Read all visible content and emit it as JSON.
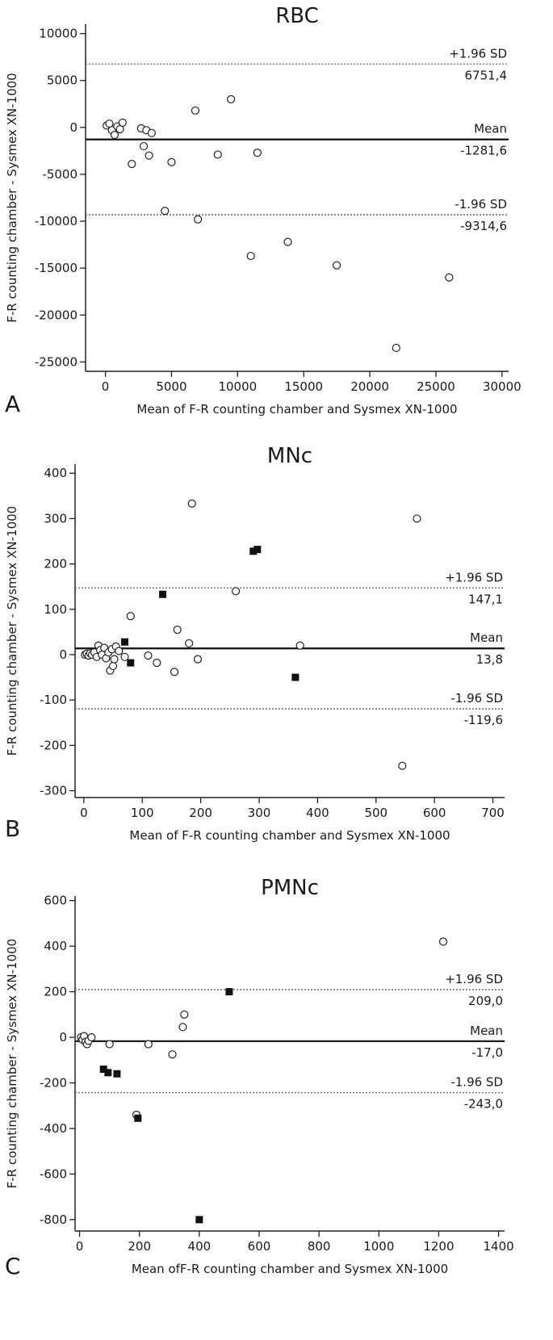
{
  "chart_data": [
    {
      "type": "scatter",
      "panel_letter": "A",
      "title": "RBC",
      "xlabel": "Mean of F-R counting chamber and Sysmex XN-1000",
      "ylabel": "F-R counting chamber - Sysmex XN-1000",
      "xlim": [
        -1500,
        30500
      ],
      "ylim": [
        -26000,
        11000
      ],
      "xticks": [
        0,
        5000,
        10000,
        15000,
        20000,
        25000,
        30000
      ],
      "xtick_labels": [
        "0",
        "5000",
        "10000",
        "15000",
        "20000",
        "25000",
        "30000"
      ],
      "yticks": [
        10000,
        5000,
        0,
        -5000,
        -10000,
        -15000,
        -20000,
        -25000
      ],
      "ytick_labels": [
        "10000",
        "5000",
        "0",
        "-5000",
        "-10000",
        "-15000",
        "-20000",
        "-25000"
      ],
      "grid": false,
      "reference_lines": [
        {
          "name": "+1.96 SD",
          "value": 6751.4,
          "value_label": "6751,4",
          "style": "dotted"
        },
        {
          "name": "Mean",
          "value": -1281.6,
          "value_label": "-1281,6",
          "style": "solid"
        },
        {
          "name": "-1.96 SD",
          "value": -9314.6,
          "value_label": "-9314,6",
          "style": "dotted"
        }
      ],
      "series": [
        {
          "marker": "open-circle",
          "x": [
            100,
            300,
            500,
            700,
            900,
            1100,
            1300,
            2000,
            2700,
            2900,
            3100,
            3300,
            3500,
            4500,
            5000,
            6800,
            7000,
            8500,
            9500,
            11000,
            11500,
            13800,
            17500,
            22000,
            26000
          ],
          "y": [
            200,
            400,
            -300,
            -800,
            100,
            -200,
            500,
            -3900,
            -100,
            -2000,
            -300,
            -3000,
            -600,
            -8900,
            -3700,
            1800,
            -9800,
            -2900,
            3000,
            -13700,
            -2700,
            -12200,
            -14700,
            -23500,
            -16000
          ]
        }
      ]
    },
    {
      "type": "scatter",
      "panel_letter": "B",
      "title": "MNc",
      "xlabel": "Mean of F-R counting chamber and Sysmex XN-1000",
      "ylabel": "F-R counting chamber - Sysmex XN-1000",
      "xlim": [
        -15,
        720
      ],
      "ylim": [
        -315,
        420
      ],
      "xticks": [
        0,
        100,
        200,
        300,
        400,
        500,
        600,
        700
      ],
      "xtick_labels": [
        "0",
        "100",
        "200",
        "300",
        "400",
        "500",
        "600",
        "700"
      ],
      "yticks": [
        400,
        300,
        200,
        100,
        0,
        -100,
        -200,
        -300
      ],
      "ytick_labels": [
        "400",
        "300",
        "200",
        "100",
        "0",
        "-100",
        "-200",
        "-300"
      ],
      "grid": false,
      "reference_lines": [
        {
          "name": "+1.96 SD",
          "value": 147.1,
          "value_label": "147,1",
          "style": "dotted"
        },
        {
          "name": "Mean",
          "value": 13.8,
          "value_label": "13,8",
          "style": "solid"
        },
        {
          "name": "-1.96 SD",
          "value": -119.6,
          "value_label": "-119,6",
          "style": "dotted"
        }
      ],
      "series": [
        {
          "marker": "open-circle",
          "x": [
            2,
            5,
            8,
            11,
            14,
            18,
            22,
            25,
            28,
            31,
            35,
            38,
            42,
            45,
            48,
            50,
            52,
            55,
            60,
            70,
            80,
            110,
            125,
            155,
            160,
            180,
            185,
            195,
            260,
            370,
            545,
            570
          ],
          "y": [
            0,
            2,
            -2,
            3,
            0,
            5,
            -5,
            20,
            10,
            0,
            15,
            -8,
            5,
            -35,
            12,
            -25,
            -10,
            18,
            8,
            -5,
            85,
            -2,
            -18,
            -38,
            55,
            25,
            333,
            -10,
            140,
            20,
            -245,
            300
          ]
        },
        {
          "marker": "filled-square",
          "x": [
            70,
            80,
            135,
            290,
            297,
            362
          ],
          "y": [
            28,
            -18,
            133,
            228,
            232,
            -50
          ]
        }
      ]
    },
    {
      "type": "scatter",
      "panel_letter": "C",
      "title": "PMNc",
      "xlabel": "Mean ofF-R counting chamber and Sysmex XN-1000",
      "ylabel": "F-R counting chamber - Sysmex XN-1000",
      "xlim": [
        -15,
        1420
      ],
      "ylim": [
        -850,
        620
      ],
      "xticks": [
        0,
        200,
        400,
        600,
        800,
        1000,
        1200,
        1400
      ],
      "xtick_labels": [
        "0",
        "200",
        "400",
        "600",
        "800",
        "1000",
        "1200",
        "1400"
      ],
      "yticks": [
        600,
        400,
        200,
        0,
        -200,
        -400,
        -600,
        -800
      ],
      "ytick_labels": [
        "600",
        "400",
        "200",
        "0",
        "-200",
        "-400",
        "-600",
        "-800"
      ],
      "grid": false,
      "reference_lines": [
        {
          "name": "+1.96 SD",
          "value": 209.0,
          "value_label": "209,0",
          "style": "dotted"
        },
        {
          "name": "Mean",
          "value": -17.0,
          "value_label": "-17,0",
          "style": "solid"
        },
        {
          "name": "-1.96 SD",
          "value": -243.0,
          "value_label": "-243,0",
          "style": "dotted"
        }
      ],
      "series": [
        {
          "marker": "open-circle",
          "x": [
            5,
            10,
            15,
            20,
            25,
            30,
            40,
            100,
            190,
            230,
            310,
            345,
            350,
            1215
          ],
          "y": [
            0,
            -10,
            5,
            -20,
            -30,
            -15,
            0,
            -30,
            -340,
            -30,
            -75,
            45,
            100,
            420
          ]
        },
        {
          "marker": "filled-square",
          "x": [
            80,
            95,
            125,
            195,
            400,
            500
          ],
          "y": [
            -140,
            -155,
            -160,
            -355,
            -800,
            200
          ]
        }
      ]
    }
  ]
}
